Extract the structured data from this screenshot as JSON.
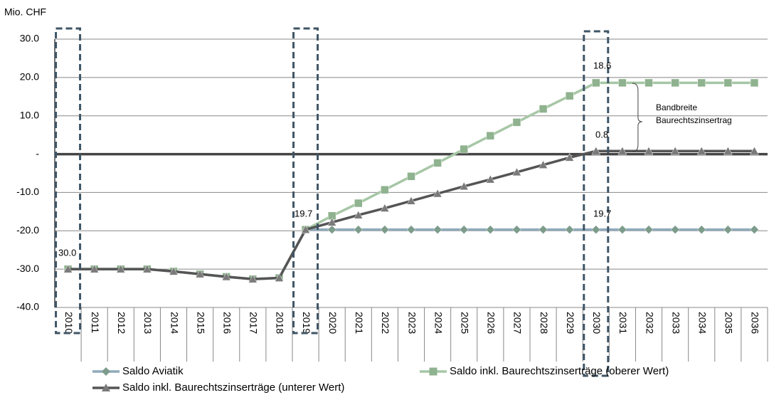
{
  "chart_data": {
    "type": "line",
    "unit_label": "Mio. CHF",
    "categories": [
      "2010",
      "2011",
      "2012",
      "2013",
      "2014",
      "2015",
      "2016",
      "2017",
      "2018",
      "2019",
      "2020",
      "2021",
      "2022",
      "2023",
      "2024",
      "2025",
      "2026",
      "2027",
      "2028",
      "2029",
      "2030",
      "2031",
      "2032",
      "2033",
      "2034",
      "2035",
      "2036"
    ],
    "series": [
      {
        "name": "Saldo Aviatik",
        "color": "#8fa9bb",
        "marker_color": "#7d9c8c",
        "marker": "diamond",
        "values": [
          -30,
          -30,
          -30,
          -30,
          -30.6,
          -31.3,
          -32,
          -32.6,
          -32.3,
          -19.7,
          -19.7,
          -19.7,
          -19.7,
          -19.7,
          -19.7,
          -19.7,
          -19.7,
          -19.7,
          -19.7,
          -19.7,
          -19.7,
          -19.7,
          -19.7,
          -19.7,
          -19.7,
          -19.7,
          -19.7
        ]
      },
      {
        "name": "Saldo inkl. Baurechtszinserträge (oberer Wert)",
        "color": "#a7c7a6",
        "marker_color": "#8fb28f",
        "marker": "square",
        "values": [
          -30,
          -30,
          -30,
          -30,
          -30.6,
          -31.3,
          -32,
          -32.6,
          -32.3,
          -19.7,
          -16.1,
          -12.8,
          -9.3,
          -5.8,
          -2.3,
          1.3,
          4.8,
          8.3,
          11.8,
          15.2,
          18.6,
          18.6,
          18.6,
          18.6,
          18.6,
          18.6,
          18.6
        ]
      },
      {
        "name": "Saldo inkl. Baurechtszinserträge (unterer Wert)",
        "color": "#555555",
        "marker_color": "#7a7a7a",
        "marker": "triangle",
        "values": [
          -30,
          -30,
          -30,
          -30,
          -30.6,
          -31.3,
          -32,
          -32.6,
          -32.3,
          -19.7,
          -17.8,
          -15.9,
          -14.1,
          -12.2,
          -10.3,
          -8.4,
          -6.6,
          -4.7,
          -2.8,
          -0.9,
          0.8,
          0.8,
          0.8,
          0.8,
          0.8,
          0.8,
          0.8
        ]
      }
    ],
    "ylim": [
      -40,
      30
    ],
    "yticks": [
      {
        "value": -40,
        "label": "-40.0"
      },
      {
        "value": -30,
        "label": "-30.0"
      },
      {
        "value": -20,
        "label": "-20.0"
      },
      {
        "value": -10,
        "label": "-10.0"
      },
      {
        "value": 0,
        "label": "-"
      },
      {
        "value": 10,
        "label": "10.0"
      },
      {
        "value": 20,
        "label": "20.0"
      },
      {
        "value": 30,
        "label": "30.0"
      }
    ],
    "grid": true,
    "annotations": [
      "30.0",
      "19.7",
      "18.6",
      "0.8",
      "19.7",
      "Bandbreite",
      "Baurechtszinsertrag"
    ]
  }
}
